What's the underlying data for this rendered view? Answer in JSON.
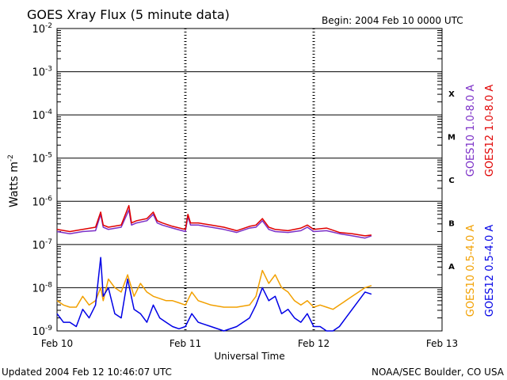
{
  "colors": {
    "background": "#ffffff",
    "axes": "#000000",
    "goes10_long": "#7b2fc7",
    "goes12_long": "#e00000",
    "goes10_short": "#f2a000",
    "goes12_short": "#0000e6"
  },
  "chart_data": {
    "type": "line",
    "title": "GOES Xray Flux (5 minute data)",
    "begin_label": "Begin:  2004 Feb 10 0000 UTC",
    "xlabel": "Universal Time",
    "ylabel": "Watts m",
    "ylabel_superscript": "-2",
    "updated_label": "Updated 2004 Feb 12 10:46:07 UTC",
    "credit_label": "NOAA/SEC Boulder, CO USA",
    "xlim_days": [
      0,
      3
    ],
    "x_ticks": [
      {
        "day": 0,
        "label": "Feb 10"
      },
      {
        "day": 1,
        "label": "Feb 11"
      },
      {
        "day": 2,
        "label": "Feb 12"
      },
      {
        "day": 3,
        "label": "Feb 13"
      }
    ],
    "y_scale": "log",
    "ylim_exp": [
      -9,
      -2
    ],
    "y_ticks": [
      {
        "exp": -2,
        "base": "10",
        "sup": "-2"
      },
      {
        "exp": -3,
        "base": "10",
        "sup": "-3"
      },
      {
        "exp": -4,
        "base": "10",
        "sup": "-4"
      },
      {
        "exp": -5,
        "base": "10",
        "sup": "-5"
      },
      {
        "exp": -6,
        "base": "10",
        "sup": "-6"
      },
      {
        "exp": -7,
        "base": "10",
        "sup": "-7"
      },
      {
        "exp": -8,
        "base": "10",
        "sup": "-8"
      },
      {
        "exp": -9,
        "base": "10",
        "sup": "-9"
      }
    ],
    "flare_classes": [
      {
        "label": "X",
        "exp": -3.5
      },
      {
        "label": "M",
        "exp": -4.5
      },
      {
        "label": "C",
        "exp": -5.5
      },
      {
        "label": "B",
        "exp": -6.5
      },
      {
        "label": "A",
        "exp": -7.5
      }
    ],
    "legend_upper": [
      {
        "label": "GOES10 1.0-8.0 A",
        "color_key": "goes10_long"
      },
      {
        "label": "GOES12 1.0-8.0 A",
        "color_key": "goes12_long"
      }
    ],
    "legend_lower": [
      {
        "label": "GOES10 0.5-4.0 A",
        "color_key": "goes10_short"
      },
      {
        "label": "GOES12 0.5-4.0 A",
        "color_key": "goes12_short"
      }
    ],
    "series": [
      {
        "name": "GOES10 1.0-8.0 A",
        "color_key": "goes10_long",
        "x": [
          0,
          0.1,
          0.2,
          0.3,
          0.34,
          0.36,
          0.4,
          0.5,
          0.56,
          0.58,
          0.62,
          0.7,
          0.75,
          0.78,
          0.82,
          0.9,
          1.0,
          1.02,
          1.04,
          1.1,
          1.2,
          1.3,
          1.4,
          1.5,
          1.55,
          1.6,
          1.65,
          1.7,
          1.8,
          1.9,
          1.95,
          2.0,
          2.1,
          2.2,
          2.3,
          2.4,
          2.45
        ],
        "y": [
          -6.7,
          -6.75,
          -6.7,
          -6.68,
          -6.3,
          -6.6,
          -6.65,
          -6.6,
          -6.2,
          -6.55,
          -6.5,
          -6.45,
          -6.3,
          -6.5,
          -6.55,
          -6.62,
          -6.7,
          -6.35,
          -6.55,
          -6.55,
          -6.6,
          -6.65,
          -6.72,
          -6.62,
          -6.6,
          -6.45,
          -6.65,
          -6.7,
          -6.72,
          -6.68,
          -6.6,
          -6.7,
          -6.68,
          -6.75,
          -6.8,
          -6.85,
          -6.8
        ]
      },
      {
        "name": "GOES12 1.0-8.0 A",
        "color_key": "goes12_long",
        "x": [
          0,
          0.1,
          0.2,
          0.3,
          0.34,
          0.36,
          0.4,
          0.5,
          0.56,
          0.58,
          0.62,
          0.7,
          0.75,
          0.78,
          0.82,
          0.9,
          1.0,
          1.02,
          1.04,
          1.1,
          1.2,
          1.3,
          1.4,
          1.5,
          1.55,
          1.6,
          1.65,
          1.7,
          1.8,
          1.9,
          1.95,
          2.0,
          2.1,
          2.2,
          2.3,
          2.4,
          2.45
        ],
        "y": [
          -6.65,
          -6.7,
          -6.65,
          -6.6,
          -6.25,
          -6.55,
          -6.6,
          -6.55,
          -6.1,
          -6.5,
          -6.45,
          -6.4,
          -6.25,
          -6.45,
          -6.5,
          -6.58,
          -6.65,
          -6.3,
          -6.5,
          -6.5,
          -6.55,
          -6.6,
          -6.68,
          -6.58,
          -6.55,
          -6.4,
          -6.6,
          -6.65,
          -6.68,
          -6.62,
          -6.55,
          -6.65,
          -6.62,
          -6.72,
          -6.75,
          -6.8,
          -6.78
        ]
      },
      {
        "name": "GOES10 0.5-4.0 A",
        "color_key": "goes10_short",
        "x": [
          0,
          0.05,
          0.1,
          0.15,
          0.2,
          0.25,
          0.3,
          0.34,
          0.36,
          0.4,
          0.45,
          0.5,
          0.55,
          0.6,
          0.65,
          0.7,
          0.75,
          0.8,
          0.85,
          0.9,
          0.95,
          1.0,
          1.05,
          1.1,
          1.2,
          1.3,
          1.4,
          1.5,
          1.55,
          1.6,
          1.65,
          1.7,
          1.75,
          1.8,
          1.85,
          1.9,
          1.95,
          2.0,
          2.05,
          2.1,
          2.15,
          2.2,
          2.25,
          2.3,
          2.35,
          2.4,
          2.45
        ],
        "y": [
          -8.3,
          -8.4,
          -8.45,
          -8.45,
          -8.2,
          -8.4,
          -8.3,
          -8.0,
          -8.3,
          -7.8,
          -8.0,
          -8.1,
          -7.7,
          -8.2,
          -7.9,
          -8.1,
          -8.2,
          -8.25,
          -8.3,
          -8.3,
          -8.35,
          -8.4,
          -8.1,
          -8.3,
          -8.4,
          -8.45,
          -8.45,
          -8.4,
          -8.2,
          -7.6,
          -7.9,
          -7.7,
          -8.0,
          -8.1,
          -8.3,
          -8.4,
          -8.3,
          -8.45,
          -8.4,
          -8.45,
          -8.5,
          -8.4,
          -8.3,
          -8.2,
          -8.1,
          -8.0,
          -7.95
        ]
      },
      {
        "name": "GOES12 0.5-4.0 A",
        "color_key": "goes12_short",
        "x": [
          0,
          0.05,
          0.1,
          0.15,
          0.2,
          0.25,
          0.3,
          0.34,
          0.36,
          0.4,
          0.45,
          0.5,
          0.55,
          0.6,
          0.65,
          0.7,
          0.75,
          0.8,
          0.85,
          0.9,
          0.95,
          1.0,
          1.05,
          1.1,
          1.2,
          1.3,
          1.4,
          1.5,
          1.55,
          1.6,
          1.65,
          1.7,
          1.75,
          1.8,
          1.85,
          1.9,
          1.95,
          2.0,
          2.05,
          2.1,
          2.15,
          2.2,
          2.25,
          2.3,
          2.35,
          2.4,
          2.45
        ],
        "y": [
          -8.6,
          -8.8,
          -8.8,
          -8.9,
          -8.5,
          -8.7,
          -8.4,
          -7.3,
          -8.2,
          -8.0,
          -8.6,
          -8.7,
          -7.8,
          -8.5,
          -8.6,
          -8.8,
          -8.4,
          -8.7,
          -8.8,
          -8.9,
          -8.95,
          -8.9,
          -8.6,
          -8.8,
          -8.9,
          -9.0,
          -8.9,
          -8.7,
          -8.4,
          -8.0,
          -8.3,
          -8.2,
          -8.6,
          -8.5,
          -8.7,
          -8.8,
          -8.6,
          -8.9,
          -8.9,
          -9.0,
          -9.0,
          -8.9,
          -8.7,
          -8.5,
          -8.3,
          -8.1,
          -8.15
        ]
      }
    ]
  }
}
